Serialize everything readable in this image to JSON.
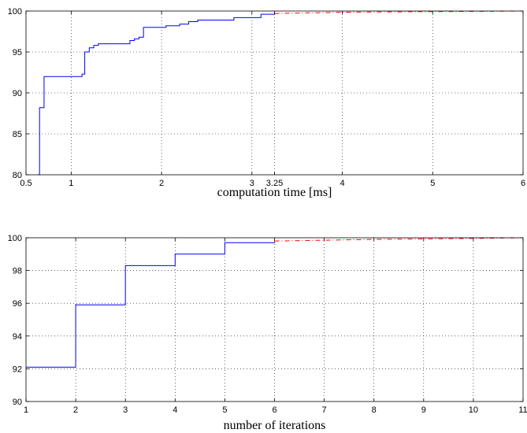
{
  "colors": {
    "measured": "#0000ff",
    "extrapolated": "#ff0000"
  },
  "chart_data": [
    {
      "type": "line",
      "title": "",
      "xlabel": "computation time [ms]",
      "ylabel": "",
      "xlim": [
        0.5,
        6
      ],
      "ylim": [
        80,
        100
      ],
      "grid": true,
      "xticks": [
        0.5,
        1,
        2,
        3,
        3.25,
        4,
        5,
        6
      ],
      "xtick_labels": [
        "0.5",
        "1",
        "2",
        "3",
        "3.25",
        "4",
        "5",
        "6"
      ],
      "yticks": [
        80,
        85,
        90,
        95,
        100
      ],
      "ytick_labels": [
        "80",
        "85",
        "90",
        "95",
        "100"
      ],
      "series": [
        {
          "style": "solid",
          "color": "#0000ff",
          "step": true,
          "x": [
            0.63,
            0.65,
            0.7,
            1.12,
            1.15,
            1.2,
            1.25,
            1.3,
            1.65,
            1.7,
            1.75,
            1.8,
            2.05,
            2.2,
            2.3,
            2.4,
            2.8,
            3.1,
            3.25
          ],
          "y": [
            80.0,
            88.2,
            92.0,
            92.3,
            95.0,
            95.5,
            95.8,
            96.0,
            96.4,
            96.6,
            96.8,
            98.0,
            98.2,
            98.4,
            98.7,
            98.9,
            99.2,
            99.6,
            99.7
          ]
        },
        {
          "style": "dashdot",
          "color": "#ff0000",
          "step": false,
          "x": [
            3.25,
            3.5,
            4,
            4.5,
            5,
            5.5,
            6
          ],
          "y": [
            99.7,
            99.75,
            99.85,
            99.9,
            99.93,
            99.96,
            100.0
          ]
        }
      ]
    },
    {
      "type": "line",
      "title": "",
      "xlabel": "number of iterations",
      "ylabel": "",
      "xlim": [
        1,
        11
      ],
      "ylim": [
        90,
        100
      ],
      "grid": true,
      "xticks": [
        1,
        2,
        3,
        4,
        5,
        6,
        7,
        8,
        9,
        10,
        11
      ],
      "xtick_labels": [
        "1",
        "2",
        "3",
        "4",
        "5",
        "6",
        "7",
        "8",
        "9",
        "10",
        "11"
      ],
      "yticks": [
        90,
        92,
        94,
        96,
        98,
        100
      ],
      "ytick_labels": [
        "90",
        "92",
        "94",
        "96",
        "98",
        "100"
      ],
      "series": [
        {
          "style": "solid",
          "color": "#0000ff",
          "step": true,
          "x": [
            1,
            2,
            3,
            4,
            5,
            6
          ],
          "y": [
            92.1,
            95.9,
            98.3,
            99.0,
            99.7,
            99.75
          ]
        },
        {
          "style": "dashdot",
          "color": "#ff0000",
          "step": false,
          "x": [
            6,
            7,
            8,
            9,
            10,
            11
          ],
          "y": [
            99.8,
            99.85,
            99.9,
            99.93,
            99.96,
            100.0
          ]
        }
      ]
    }
  ]
}
